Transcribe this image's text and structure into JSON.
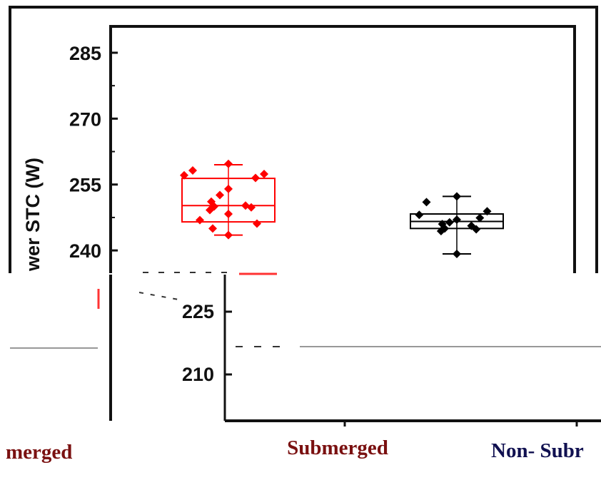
{
  "chart_data": {
    "type": "box",
    "ylabel": "wer STC (W)",
    "yticks": [
      285,
      270,
      255,
      240
    ],
    "yticks_lower": [
      225,
      210
    ],
    "ylim": [
      234.5,
      291
    ],
    "series": [
      {
        "category": "Submerged",
        "color": "#ff0000",
        "box": {
          "q1": 246.5,
          "median": 250.2,
          "q3": 256.4,
          "whisker_low": 243.5,
          "whisker_high": 259.5
        },
        "points": [
          259.7,
          258.2,
          257.4,
          257.1,
          256.5,
          254.0,
          252.6,
          251.1,
          250.2,
          250.0,
          249.8,
          249.2,
          248.3,
          246.9,
          246.1,
          245.0,
          243.5
        ]
      },
      {
        "category": "Non- Submerged",
        "color": "#000000",
        "box": {
          "q1": 245.0,
          "median": 246.6,
          "q3": 248.3,
          "whisker_low": 239.2,
          "whisker_high": 252.3
        },
        "points": [
          252.3,
          251.0,
          248.9,
          248.1,
          247.4,
          247.0,
          246.4,
          246.0,
          245.6,
          245.0,
          244.8,
          244.4,
          239.2
        ]
      }
    ],
    "lower_fragment_labels": [
      "merged",
      "Submerged",
      "Non- Subr"
    ]
  }
}
